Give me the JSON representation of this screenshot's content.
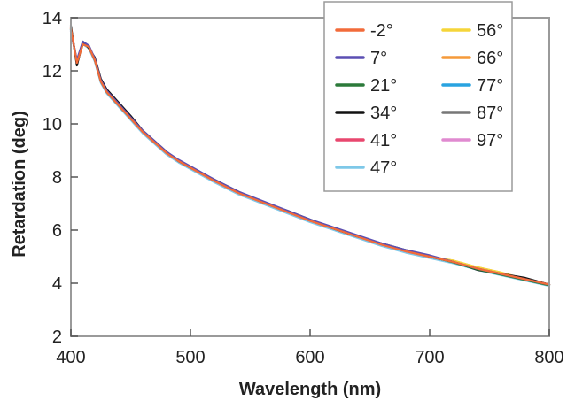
{
  "chart_data": {
    "type": "line",
    "xlabel": "Wavelength (nm)",
    "ylabel": "Retardation (deg)",
    "xlim": [
      400,
      800
    ],
    "ylim": [
      2,
      14
    ],
    "x_ticks": [
      400,
      500,
      600,
      700,
      800
    ],
    "y_ticks": [
      2,
      4,
      6,
      8,
      10,
      12,
      14
    ],
    "grid": false,
    "legend_position": "top-right",
    "x": [
      400,
      405,
      410,
      415,
      420,
      425,
      430,
      440,
      450,
      460,
      470,
      480,
      490,
      500,
      520,
      540,
      560,
      580,
      600,
      620,
      640,
      660,
      680,
      700,
      720,
      740,
      760,
      780,
      800
    ],
    "series": [
      {
        "name": "-2°",
        "color": "#f26b3a",
        "values": [
          13.6,
          12.3,
          13.0,
          12.9,
          12.4,
          11.6,
          11.2,
          10.7,
          10.2,
          9.7,
          9.3,
          8.9,
          8.6,
          8.35,
          7.85,
          7.4,
          7.05,
          6.7,
          6.35,
          6.05,
          5.75,
          5.45,
          5.2,
          5.0,
          4.8,
          4.55,
          4.35,
          4.15,
          3.95
        ]
      },
      {
        "name": "7°",
        "color": "#5b4fb3",
        "values": [
          13.5,
          12.4,
          13.1,
          12.95,
          12.45,
          11.65,
          11.25,
          10.75,
          10.25,
          9.75,
          9.35,
          8.95,
          8.65,
          8.4,
          7.9,
          7.45,
          7.1,
          6.75,
          6.4,
          6.1,
          5.8,
          5.5,
          5.25,
          5.05,
          4.8,
          4.55,
          4.35,
          4.15,
          3.95
        ]
      },
      {
        "name": "21°",
        "color": "#2c7a3a",
        "values": [
          13.55,
          12.35,
          13.0,
          12.9,
          12.4,
          11.6,
          11.2,
          10.7,
          10.2,
          9.72,
          9.3,
          8.92,
          8.62,
          8.37,
          7.87,
          7.42,
          7.07,
          6.72,
          6.37,
          6.07,
          5.77,
          5.47,
          5.22,
          5.02,
          4.78,
          4.52,
          4.32,
          4.12,
          3.92
        ]
      },
      {
        "name": "34°",
        "color": "#111111",
        "values": [
          13.7,
          12.2,
          13.1,
          12.85,
          12.5,
          11.7,
          11.3,
          10.8,
          10.3,
          9.75,
          9.35,
          8.95,
          8.6,
          8.35,
          7.9,
          7.45,
          7.05,
          6.75,
          6.4,
          6.05,
          5.75,
          5.5,
          5.25,
          5.0,
          4.8,
          4.5,
          4.35,
          4.2,
          3.95
        ]
      },
      {
        "name": "41°",
        "color": "#e8476e",
        "values": [
          13.6,
          12.3,
          13.05,
          12.9,
          12.4,
          11.6,
          11.2,
          10.7,
          10.2,
          9.7,
          9.3,
          8.9,
          8.6,
          8.35,
          7.85,
          7.4,
          7.05,
          6.7,
          6.35,
          6.05,
          5.75,
          5.45,
          5.2,
          5.0,
          4.8,
          4.55,
          4.35,
          4.15,
          3.95
        ]
      },
      {
        "name": "47°",
        "color": "#7ec8e8",
        "values": [
          13.5,
          12.35,
          13.0,
          12.85,
          12.35,
          11.55,
          11.15,
          10.65,
          10.15,
          9.65,
          9.25,
          8.85,
          8.55,
          8.3,
          7.8,
          7.35,
          7.0,
          6.65,
          6.3,
          6.0,
          5.7,
          5.4,
          5.15,
          4.95,
          4.75,
          4.5,
          4.3,
          4.1,
          3.9
        ]
      },
      {
        "name": "56°",
        "color": "#f5d53a",
        "values": [
          13.6,
          12.3,
          13.0,
          12.9,
          12.4,
          11.6,
          11.2,
          10.7,
          10.2,
          9.7,
          9.3,
          8.9,
          8.6,
          8.35,
          7.85,
          7.4,
          7.05,
          6.7,
          6.35,
          6.05,
          5.75,
          5.45,
          5.2,
          5.0,
          4.85,
          4.6,
          4.4,
          4.15,
          3.95
        ]
      },
      {
        "name": "66°",
        "color": "#f59a3a",
        "values": [
          13.6,
          12.3,
          13.0,
          12.9,
          12.4,
          11.6,
          11.2,
          10.7,
          10.2,
          9.7,
          9.3,
          8.9,
          8.6,
          8.35,
          7.85,
          7.4,
          7.05,
          6.7,
          6.35,
          6.05,
          5.75,
          5.45,
          5.2,
          5.0,
          4.85,
          4.6,
          4.4,
          4.15,
          3.95
        ]
      },
      {
        "name": "77°",
        "color": "#29a3e0",
        "values": [
          13.55,
          12.3,
          13.0,
          12.9,
          12.4,
          11.6,
          11.2,
          10.7,
          10.2,
          9.7,
          9.3,
          8.9,
          8.6,
          8.35,
          7.85,
          7.4,
          7.05,
          6.7,
          6.35,
          6.05,
          5.75,
          5.45,
          5.2,
          5.0,
          4.8,
          4.55,
          4.35,
          4.15,
          3.95
        ]
      },
      {
        "name": "87°",
        "color": "#777777",
        "values": [
          13.6,
          12.3,
          13.0,
          12.9,
          12.4,
          11.6,
          11.2,
          10.7,
          10.2,
          9.7,
          9.3,
          8.9,
          8.6,
          8.35,
          7.85,
          7.4,
          7.05,
          6.7,
          6.35,
          6.05,
          5.75,
          5.45,
          5.2,
          5.0,
          4.8,
          4.55,
          4.35,
          4.15,
          3.95
        ]
      },
      {
        "name": "97°",
        "color": "#e08ad0",
        "values": [
          13.6,
          12.3,
          13.0,
          12.9,
          12.4,
          11.6,
          11.2,
          10.7,
          10.2,
          9.7,
          9.3,
          8.9,
          8.6,
          8.35,
          7.85,
          7.4,
          7.05,
          6.7,
          6.35,
          6.05,
          5.75,
          5.45,
          5.2,
          5.0,
          4.8,
          4.55,
          4.35,
          4.15,
          3.95
        ]
      }
    ]
  }
}
